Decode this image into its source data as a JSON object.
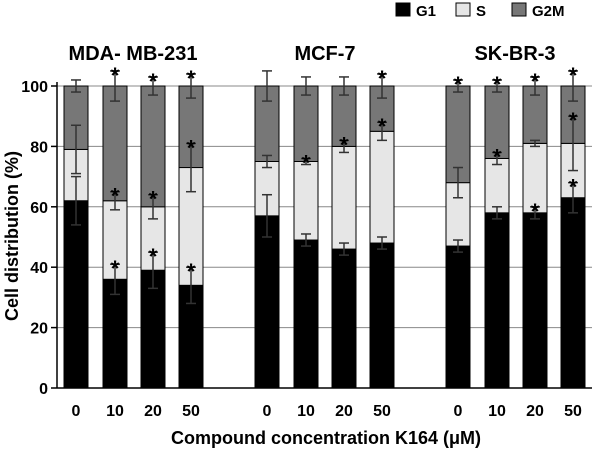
{
  "chart_data": {
    "type": "bar",
    "stacked": true,
    "title": "",
    "xlabel": "Compound concentration K164 (μM)",
    "ylabel": "Cell distribution (%)",
    "ylim": [
      0,
      100
    ],
    "yticks": [
      0,
      20,
      40,
      60,
      80,
      100
    ],
    "grid": true,
    "legend_position": "top-right",
    "groups": [
      {
        "name": "MDA- MB-231",
        "categories": [
          "0",
          "10",
          "20",
          "50"
        ]
      },
      {
        "name": "MCF-7",
        "categories": [
          "0",
          "10",
          "20",
          "50"
        ]
      },
      {
        "name": "SK-BR-3",
        "categories": [
          "0",
          "10",
          "20",
          "50"
        ]
      }
    ],
    "series": [
      {
        "name": "G1",
        "color": "#000000",
        "values": [
          62,
          36,
          39,
          34,
          57,
          49,
          46,
          48,
          47,
          58,
          58,
          63
        ],
        "error": [
          8,
          5,
          6,
          6,
          7,
          2,
          2,
          2,
          2,
          2,
          2,
          5
        ],
        "significant": [
          false,
          true,
          true,
          true,
          false,
          false,
          false,
          false,
          false,
          false,
          true,
          true
        ]
      },
      {
        "name": "S",
        "color": "#e6e6e6",
        "values": [
          17,
          26,
          21,
          39,
          18,
          26,
          34,
          37,
          21,
          18,
          23,
          18
        ],
        "error": [
          8,
          3,
          4,
          8,
          2,
          1,
          2,
          3,
          5,
          2,
          1,
          9
        ],
        "significant": [
          false,
          true,
          true,
          true,
          false,
          true,
          true,
          true,
          false,
          true,
          false,
          true
        ]
      },
      {
        "name": "G2M",
        "color": "#777777",
        "values": [
          21,
          38,
          40,
          27,
          25,
          25,
          20,
          15,
          32,
          24,
          19,
          19
        ],
        "error": [
          2,
          5,
          3,
          4,
          5,
          3,
          3,
          4,
          2,
          2,
          3,
          5
        ],
        "significant": [
          false,
          true,
          true,
          true,
          false,
          false,
          false,
          true,
          true,
          true,
          true,
          true
        ]
      }
    ]
  }
}
